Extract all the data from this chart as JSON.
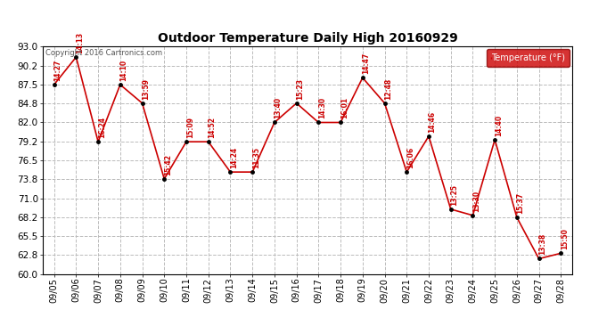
{
  "title": "Outdoor Temperature Daily High 20160929",
  "copyright_text": "Copyright 2016 Cartronics.com",
  "legend_label": "Temperature (°F)",
  "dates": [
    "09/05",
    "09/06",
    "09/07",
    "09/08",
    "09/09",
    "09/10",
    "09/11",
    "09/12",
    "09/13",
    "09/14",
    "09/15",
    "09/16",
    "09/17",
    "09/18",
    "09/19",
    "09/20",
    "09/21",
    "09/22",
    "09/23",
    "09/24",
    "09/25",
    "09/26",
    "09/27",
    "09/28"
  ],
  "temps": [
    87.5,
    91.5,
    79.2,
    87.5,
    84.8,
    73.8,
    79.2,
    79.2,
    74.8,
    74.8,
    82.0,
    84.8,
    82.0,
    82.0,
    88.5,
    84.8,
    74.8,
    80.0,
    69.4,
    68.5,
    79.5,
    68.2,
    62.2,
    63.0
  ],
  "time_labels": [
    "14:27",
    "14:13",
    "16:24",
    "14:10",
    "13:59",
    "15:42",
    "15:09",
    "14:52",
    "14:24",
    "11:35",
    "13:40",
    "15:23",
    "14:30",
    "16:01",
    "14:47",
    "12:48",
    "16:06",
    "14:46",
    "13:25",
    "13:30",
    "14:40",
    "15:37",
    "13:38",
    "15:50"
  ],
  "ylim": [
    60.0,
    93.0
  ],
  "yticks": [
    60.0,
    62.8,
    65.5,
    68.2,
    71.0,
    73.8,
    76.5,
    79.2,
    82.0,
    84.8,
    87.5,
    90.2,
    93.0
  ],
  "line_color": "#cc0000",
  "marker_color": "#000000",
  "label_color": "#cc0000",
  "bg_color": "#ffffff",
  "grid_color": "#bbbbbb",
  "title_color": "#000000",
  "legend_bg": "#cc0000",
  "legend_text_color": "#ffffff",
  "figsize": [
    6.9,
    3.75
  ],
  "dpi": 100
}
